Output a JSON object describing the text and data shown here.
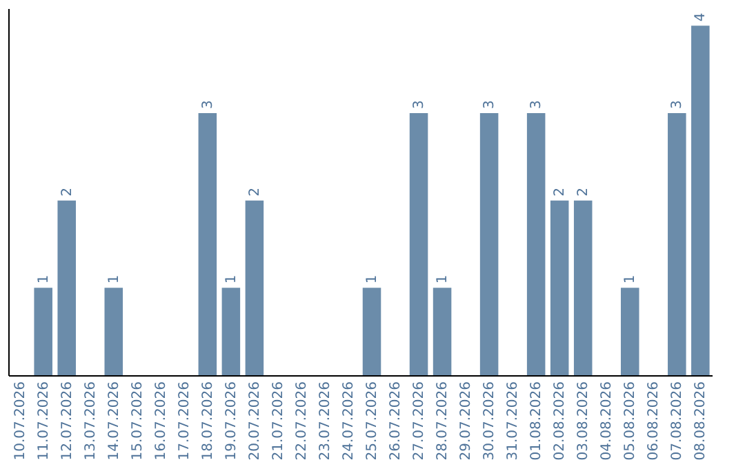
{
  "chart_data": {
    "type": "bar",
    "categories": [
      "10.07.2026",
      "11.07.2026",
      "12.07.2026",
      "13.07.2026",
      "14.07.2026",
      "15.07.2026",
      "16.07.2026",
      "17.07.2026",
      "18.07.2026",
      "19.07.2026",
      "20.07.2026",
      "21.07.2026",
      "22.07.2026",
      "23.07.2026",
      "24.07.2026",
      "25.07.2026",
      "26.07.2026",
      "27.07.2026",
      "28.07.2026",
      "29.07.2026",
      "30.07.2026",
      "31.07.2026",
      "01.08.2026",
      "02.08.2026",
      "03.08.2026",
      "04.08.2026",
      "05.08.2026",
      "06.08.2026",
      "07.08.2026",
      "08.08.2026"
    ],
    "values": [
      null,
      1,
      2,
      null,
      1,
      null,
      null,
      null,
      3,
      1,
      2,
      null,
      null,
      null,
      null,
      1,
      null,
      3,
      1,
      null,
      3,
      null,
      3,
      2,
      2,
      null,
      1,
      null,
      3,
      4
    ],
    "color": "#6b8caa",
    "ylim": [
      0,
      4.2
    ],
    "data_labels": true,
    "tick_labels": "x",
    "grid": false
  }
}
